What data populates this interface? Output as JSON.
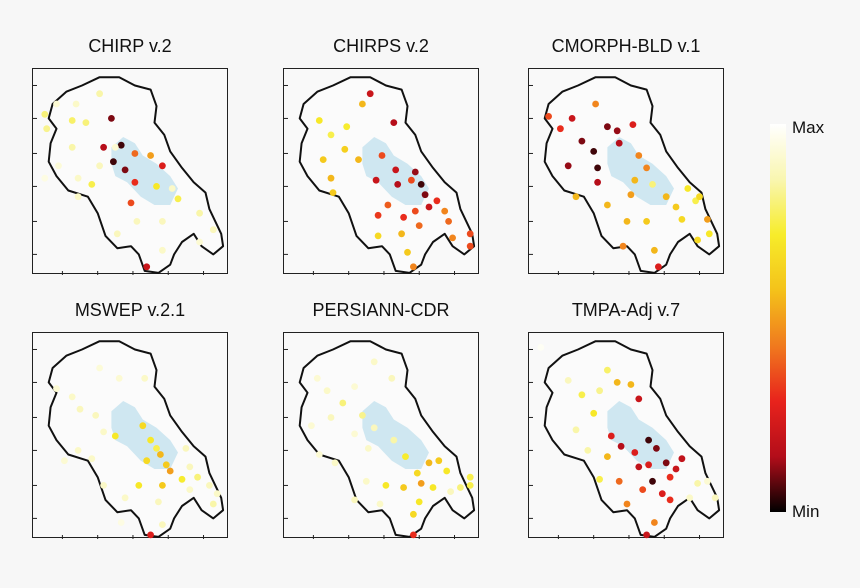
{
  "colorbar": {
    "max_label": "Max",
    "min_label": "Min",
    "colors": [
      "#000000",
      "#b30d1a",
      "#e8231c",
      "#f07a1e",
      "#f4c21a",
      "#f7ec2a",
      "#f9f6b0",
      "#ffffff"
    ]
  },
  "chart_data": [
    {
      "type": "scatter",
      "title": "CHIRP v.2",
      "points": [
        [
          0.06,
          0.22,
          0.8
        ],
        [
          0.07,
          0.29,
          0.82
        ],
        [
          0.12,
          0.17,
          0.92
        ],
        [
          0.2,
          0.25,
          0.78
        ],
        [
          0.22,
          0.17,
          0.9
        ],
        [
          0.27,
          0.26,
          0.8
        ],
        [
          0.34,
          0.12,
          0.85
        ],
        [
          0.4,
          0.24,
          0.1
        ],
        [
          0.45,
          0.37,
          0.05
        ],
        [
          0.52,
          0.41,
          0.4
        ],
        [
          0.47,
          0.49,
          0.1
        ],
        [
          0.34,
          0.47,
          0.88
        ],
        [
          0.3,
          0.56,
          0.75
        ],
        [
          0.2,
          0.38,
          0.85
        ],
        [
          0.23,
          0.53,
          0.9
        ],
        [
          0.13,
          0.47,
          0.93
        ],
        [
          0.06,
          0.53,
          0.95
        ],
        [
          0.36,
          0.38,
          0.15
        ],
        [
          0.41,
          0.45,
          0.05
        ],
        [
          0.52,
          0.55,
          0.3
        ],
        [
          0.6,
          0.42,
          0.5
        ],
        [
          0.63,
          0.57,
          0.7
        ],
        [
          0.66,
          0.74,
          0.88
        ],
        [
          0.5,
          0.65,
          0.35
        ],
        [
          0.74,
          0.63,
          0.75
        ],
        [
          0.85,
          0.7,
          0.85
        ],
        [
          0.43,
          0.8,
          0.88
        ],
        [
          0.53,
          0.74,
          0.88
        ],
        [
          0.66,
          0.88,
          0.9
        ],
        [
          0.58,
          0.96,
          0.2
        ],
        [
          0.92,
          0.78,
          0.88
        ],
        [
          0.85,
          0.84,
          0.92
        ],
        [
          0.66,
          0.47,
          0.25
        ],
        [
          0.42,
          0.38,
          0.92
        ],
        [
          0.71,
          0.58,
          0.9
        ],
        [
          0.23,
          0.62,
          0.9
        ]
      ]
    },
    {
      "type": "scatter",
      "title": "CHIRPS v.2",
      "points": [
        [
          0.18,
          0.25,
          0.7
        ],
        [
          0.24,
          0.32,
          0.75
        ],
        [
          0.32,
          0.28,
          0.72
        ],
        [
          0.4,
          0.17,
          0.55
        ],
        [
          0.44,
          0.12,
          0.2
        ],
        [
          0.56,
          0.26,
          0.15
        ],
        [
          0.31,
          0.39,
          0.62
        ],
        [
          0.38,
          0.44,
          0.55
        ],
        [
          0.2,
          0.44,
          0.6
        ],
        [
          0.24,
          0.53,
          0.55
        ],
        [
          0.25,
          0.6,
          0.6
        ],
        [
          0.5,
          0.42,
          0.35
        ],
        [
          0.57,
          0.49,
          0.2
        ],
        [
          0.47,
          0.54,
          0.2
        ],
        [
          0.58,
          0.56,
          0.15
        ],
        [
          0.65,
          0.54,
          0.35
        ],
        [
          0.67,
          0.5,
          0.12
        ],
        [
          0.7,
          0.56,
          0.05
        ],
        [
          0.72,
          0.61,
          0.1
        ],
        [
          0.74,
          0.67,
          0.2
        ],
        [
          0.67,
          0.69,
          0.35
        ],
        [
          0.53,
          0.66,
          0.38
        ],
        [
          0.61,
          0.72,
          0.3
        ],
        [
          0.48,
          0.71,
          0.32
        ],
        [
          0.6,
          0.8,
          0.55
        ],
        [
          0.69,
          0.76,
          0.4
        ],
        [
          0.82,
          0.69,
          0.45
        ],
        [
          0.84,
          0.74,
          0.4
        ],
        [
          0.95,
          0.8,
          0.35
        ],
        [
          0.95,
          0.86,
          0.35
        ],
        [
          0.86,
          0.82,
          0.45
        ],
        [
          0.48,
          0.81,
          0.65
        ],
        [
          0.63,
          0.89,
          0.6
        ],
        [
          0.66,
          0.96,
          0.45
        ],
        [
          0.78,
          0.64,
          0.3
        ]
      ]
    },
    {
      "type": "scatter",
      "title": "CMORPH-BLD v.1",
      "points": [
        [
          0.1,
          0.23,
          0.35
        ],
        [
          0.16,
          0.29,
          0.3
        ],
        [
          0.22,
          0.24,
          0.2
        ],
        [
          0.34,
          0.17,
          0.45
        ],
        [
          0.4,
          0.28,
          0.1
        ],
        [
          0.53,
          0.27,
          0.25
        ],
        [
          0.27,
          0.35,
          0.1
        ],
        [
          0.33,
          0.4,
          0.05
        ],
        [
          0.46,
          0.36,
          0.15
        ],
        [
          0.35,
          0.48,
          0.05
        ],
        [
          0.2,
          0.47,
          0.12
        ],
        [
          0.35,
          0.55,
          0.15
        ],
        [
          0.56,
          0.42,
          0.45
        ],
        [
          0.6,
          0.48,
          0.45
        ],
        [
          0.54,
          0.54,
          0.55
        ],
        [
          0.63,
          0.56,
          0.8
        ],
        [
          0.7,
          0.62,
          0.55
        ],
        [
          0.81,
          0.58,
          0.7
        ],
        [
          0.75,
          0.67,
          0.6
        ],
        [
          0.78,
          0.73,
          0.65
        ],
        [
          0.91,
          0.73,
          0.5
        ],
        [
          0.85,
          0.64,
          0.75
        ],
        [
          0.87,
          0.62,
          0.65
        ],
        [
          0.4,
          0.66,
          0.55
        ],
        [
          0.5,
          0.74,
          0.55
        ],
        [
          0.6,
          0.74,
          0.6
        ],
        [
          0.48,
          0.86,
          0.45
        ],
        [
          0.66,
          0.96,
          0.25
        ],
        [
          0.92,
          0.8,
          0.7
        ],
        [
          0.86,
          0.83,
          0.65
        ],
        [
          0.24,
          0.62,
          0.55
        ],
        [
          0.52,
          0.61,
          0.5
        ],
        [
          0.45,
          0.3,
          0.12
        ],
        [
          0.64,
          0.88,
          0.55
        ]
      ]
    },
    {
      "type": "scatter",
      "title": "MSWEP v.2.1",
      "points": [
        [
          0.12,
          0.27,
          0.92
        ],
        [
          0.2,
          0.31,
          0.9
        ],
        [
          0.24,
          0.37,
          0.88
        ],
        [
          0.32,
          0.4,
          0.88
        ],
        [
          0.36,
          0.48,
          0.9
        ],
        [
          0.42,
          0.5,
          0.7
        ],
        [
          0.56,
          0.45,
          0.65
        ],
        [
          0.6,
          0.52,
          0.7
        ],
        [
          0.63,
          0.56,
          0.75
        ],
        [
          0.65,
          0.59,
          0.55
        ],
        [
          0.68,
          0.64,
          0.6
        ],
        [
          0.7,
          0.67,
          0.5
        ],
        [
          0.76,
          0.71,
          0.72
        ],
        [
          0.84,
          0.7,
          0.8
        ],
        [
          0.9,
          0.74,
          0.88
        ],
        [
          0.94,
          0.78,
          0.9
        ],
        [
          0.8,
          0.76,
          0.9
        ],
        [
          0.66,
          0.74,
          0.6
        ],
        [
          0.54,
          0.74,
          0.7
        ],
        [
          0.47,
          0.8,
          0.9
        ],
        [
          0.36,
          0.74,
          0.9
        ],
        [
          0.3,
          0.61,
          0.9
        ],
        [
          0.23,
          0.57,
          0.9
        ],
        [
          0.16,
          0.62,
          0.92
        ],
        [
          0.34,
          0.17,
          0.93
        ],
        [
          0.44,
          0.22,
          0.92
        ],
        [
          0.57,
          0.22,
          0.9
        ],
        [
          0.58,
          0.62,
          0.65
        ],
        [
          0.64,
          0.82,
          0.88
        ],
        [
          0.66,
          0.93,
          0.88
        ],
        [
          0.78,
          0.56,
          0.88
        ],
        [
          0.8,
          0.65,
          0.88
        ],
        [
          0.6,
          0.98,
          0.25
        ],
        [
          0.45,
          0.92,
          0.95
        ],
        [
          0.92,
          0.83,
          0.85
        ]
      ]
    },
    {
      "type": "scatter",
      "title": "PERSIANN-CDR",
      "points": [
        [
          0.17,
          0.22,
          0.92
        ],
        [
          0.22,
          0.28,
          0.9
        ],
        [
          0.3,
          0.34,
          0.8
        ],
        [
          0.24,
          0.41,
          0.88
        ],
        [
          0.36,
          0.26,
          0.92
        ],
        [
          0.46,
          0.14,
          0.9
        ],
        [
          0.55,
          0.22,
          0.88
        ],
        [
          0.4,
          0.4,
          0.82
        ],
        [
          0.46,
          0.46,
          0.88
        ],
        [
          0.56,
          0.52,
          0.85
        ],
        [
          0.62,
          0.6,
          0.72
        ],
        [
          0.68,
          0.68,
          0.65
        ],
        [
          0.74,
          0.63,
          0.55
        ],
        [
          0.79,
          0.62,
          0.6
        ],
        [
          0.83,
          0.67,
          0.7
        ],
        [
          0.95,
          0.7,
          0.75
        ],
        [
          0.95,
          0.74,
          0.75
        ],
        [
          0.9,
          0.75,
          0.8
        ],
        [
          0.85,
          0.77,
          0.88
        ],
        [
          0.7,
          0.73,
          0.5
        ],
        [
          0.61,
          0.75,
          0.6
        ],
        [
          0.52,
          0.74,
          0.7
        ],
        [
          0.42,
          0.72,
          0.9
        ],
        [
          0.36,
          0.81,
          0.88
        ],
        [
          0.49,
          0.83,
          0.9
        ],
        [
          0.66,
          0.88,
          0.65
        ],
        [
          0.69,
          0.82,
          0.7
        ],
        [
          0.18,
          0.59,
          0.92
        ],
        [
          0.26,
          0.63,
          0.9
        ],
        [
          0.43,
          0.56,
          0.9
        ],
        [
          0.66,
          0.98,
          0.3
        ],
        [
          0.76,
          0.75,
          0.7
        ],
        [
          0.36,
          0.49,
          0.92
        ],
        [
          0.14,
          0.45,
          0.92
        ]
      ]
    },
    {
      "type": "scatter",
      "title": "TMPA-Adj v.7",
      "points": [
        [
          0.06,
          0.07,
          0.98
        ],
        [
          0.2,
          0.23,
          0.88
        ],
        [
          0.27,
          0.3,
          0.75
        ],
        [
          0.33,
          0.39,
          0.7
        ],
        [
          0.24,
          0.47,
          0.85
        ],
        [
          0.36,
          0.28,
          0.82
        ],
        [
          0.4,
          0.18,
          0.78
        ],
        [
          0.45,
          0.24,
          0.55
        ],
        [
          0.52,
          0.25,
          0.55
        ],
        [
          0.56,
          0.32,
          0.2
        ],
        [
          0.42,
          0.5,
          0.25
        ],
        [
          0.47,
          0.55,
          0.15
        ],
        [
          0.54,
          0.58,
          0.25
        ],
        [
          0.61,
          0.52,
          0.05
        ],
        [
          0.65,
          0.56,
          0.1
        ],
        [
          0.56,
          0.65,
          0.18
        ],
        [
          0.61,
          0.64,
          0.25
        ],
        [
          0.7,
          0.63,
          0.1
        ],
        [
          0.75,
          0.66,
          0.2
        ],
        [
          0.78,
          0.61,
          0.18
        ],
        [
          0.72,
          0.7,
          0.3
        ],
        [
          0.63,
          0.72,
          0.05
        ],
        [
          0.58,
          0.76,
          0.35
        ],
        [
          0.68,
          0.78,
          0.25
        ],
        [
          0.72,
          0.81,
          0.3
        ],
        [
          0.86,
          0.73,
          0.85
        ],
        [
          0.91,
          0.72,
          0.92
        ],
        [
          0.95,
          0.8,
          0.88
        ],
        [
          0.5,
          0.83,
          0.45
        ],
        [
          0.46,
          0.72,
          0.4
        ],
        [
          0.36,
          0.71,
          0.75
        ],
        [
          0.3,
          0.57,
          0.85
        ],
        [
          0.4,
          0.6,
          0.55
        ],
        [
          0.64,
          0.92,
          0.45
        ],
        [
          0.6,
          0.98,
          0.2
        ],
        [
          0.82,
          0.8,
          0.9
        ]
      ]
    }
  ]
}
